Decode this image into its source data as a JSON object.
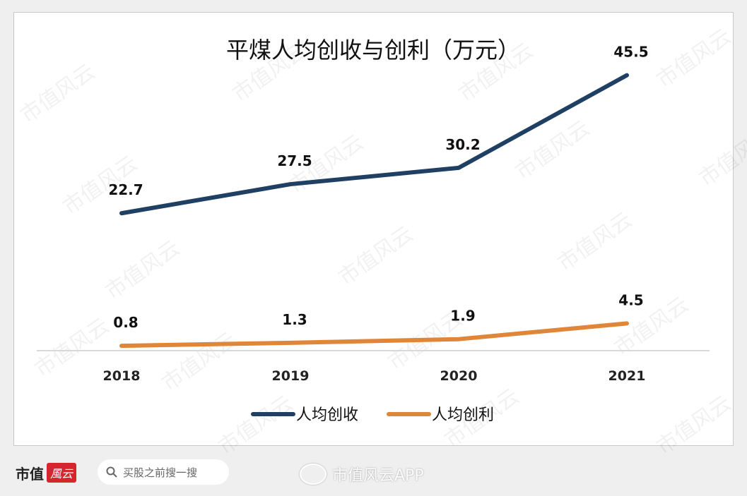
{
  "chart_data": {
    "type": "line",
    "title": "平煤人均创收与创利（万元）",
    "categories": [
      "2018",
      "2019",
      "2020",
      "2021"
    ],
    "series": [
      {
        "name": "人均创收",
        "values": [
          22.7,
          27.5,
          30.2,
          45.5
        ],
        "color": "#1f3f63",
        "labels": [
          "22.7",
          "27.5",
          "30.2",
          "45.5"
        ]
      },
      {
        "name": "人均创利",
        "values": [
          0.8,
          1.3,
          1.9,
          4.5
        ],
        "color": "#e08638",
        "labels": [
          "0.8",
          "1.3",
          "1.9",
          "4.5"
        ]
      }
    ],
    "ylim": [
      0,
      50
    ],
    "grid": false,
    "legend": "bottom",
    "axis_color": "#d9d9d9"
  },
  "watermark": "市值风云",
  "footer": {
    "logo_text": "市值",
    "logo_mark": "風云",
    "search_placeholder": "买股之前搜一搜",
    "search_icon": "search-icon",
    "weibo_label": "市值风云APP",
    "weibo_icon": "weibo-icon"
  }
}
